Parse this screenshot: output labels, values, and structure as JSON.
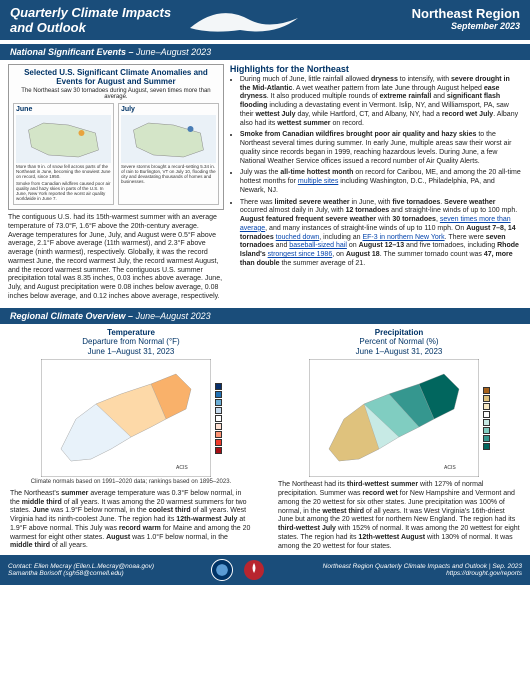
{
  "header": {
    "title_line1": "Quarterly Climate Impacts",
    "title_line2": "and Outlook",
    "region": "Northeast Region",
    "date": "September 2023"
  },
  "section1": {
    "bar_title": "National Significant Events –",
    "bar_sub": "June–August 2023",
    "map_title": "Selected U.S. Significant Climate Anomalies and Events for August and Summer",
    "map_sub": "The Northeast saw 30 tornadoes during August, seven times more than average.",
    "june_label": "June",
    "july_label": "July",
    "june_text": "More than 9 in. of snow fell across parts of the Northeast in June, becoming the snowiest June on record, since 1950.",
    "june_text2": "Smoke from Canadian wildfires caused poor air quality and hazy skies in parts of the U.S. In June, New York reported the worst air quality worldwide in June 7.",
    "july_text": "Severe storms brought a record-setting 5.34 in. of rain to Burlington, VT on July 10, flooding the city and devastating thousands of homes and businesses.",
    "summary": "The contiguous U.S. had its 15th-warmest summer with an average temperature of 73.0°F, 1.6°F above the 20th-century average. Average temperatures for June, July, and August were 0.5°F above average, 2.1°F above average (11th warmest), and 2.3°F above average (ninth warmest), respectively. Globally, it was the record warmest June, the record warmest July, the record warmest August, and the record warmest summer. The contiguous U.S. summer precipitation total was 8.35 inches, 0.03 inches above average. June, July, and August precipitation were 0.08 inches below average, 0.08 inches below average, and 0.12 inches above average, respectively.",
    "highlights_head": "Highlights for the Northeast",
    "bullets": [
      "During much of June, little rainfall allowed <b>dryness</b> to intensify, with <b>severe drought in the Mid-Atlantic</b>. A wet weather pattern from late June through August helped <b>ease dryness</b>. It also produced multiple rounds of <b>extreme rainfall</b> and <b>significant flash flooding</b> including a devastating event in Vermont. Islip, NY, and Williamsport, PA, saw their <b>wettest July</b> day, while Hartford, CT, and Albany, NY, had a <b>record wet July</b>. Albany also had its <b>wettest summer</b> on record.",
      "<b>Smoke from Canadian wildfires brought poor air quality and hazy skies</b> to the Northeast several times during summer. In early June, multiple areas saw their worst air quality since records began in 1999, reaching hazardous levels. During June, a few National Weather Service offices issued a record number of Air Quality Alerts.",
      "July was the <b>all-time hottest month</b> on record for Caribou, ME, and among the 20 all-time hottest months for <span class='link'>multiple sites</span> including Washington, D.C., Philadelphia, PA, and Newark, NJ.",
      "There was <b>limited severe weather</b> in June, with <b>five tornadoes</b>. <b>Severe weather</b> occurred almost daily in July, with <b>12 tornadoes</b> and straight-line winds of up to 100 mph. <b>August featured frequent severe weather</b> with <b>30 tornadoes</b>, <span class='link'>seven times more than average</span>, and many instances of straight-line winds of up to 110 mph. On <b>August 7–8, 14 tornadoes</b> <span class='link'>touched down</span>, including an <span class='link'>EF-3 in northern New York</span>. There were <b>seven tornadoes</b> and <span class='link'>baseball-sized hail</span> on <b>August 12–13</b> and five tornadoes, including <b>Rhode Island's</b> <span class='link'>strongest since 1986</span>, on <b>August 18</b>. The summer tornado count was <b>47, more than double</b> the summer average of 21."
    ]
  },
  "section2": {
    "bar_title": "Regional Climate Overview –",
    "bar_sub": "June–August 2023",
    "temp_head1": "Temperature",
    "temp_head2": "Departure from Normal (°F)",
    "temp_head3": "June 1–August 31, 2023",
    "precip_head1": "Precipitation",
    "precip_head2": "Percent of Normal (%)",
    "precip_head3": "June 1–August 31, 2023",
    "climate_note": "Climate normals based on 1991–2020 data; rankings based on 1895–2023.",
    "temp_para": "The Northeast's <b>summer</b> average temperature was 0.3°F below normal, in the <b>middle third</b> of all years. It was among the 20 warmest summers for two states. <b>June</b> was 1.9°F below normal, in the <b>coolest third</b> of all years. West Virginia had its ninth-coolest June. The region had its <b>12th-warmest July</b> at 1.9°F above normal. This July was <b>record warm</b> for Maine and among the 20 warmest for eight other states. <b>August</b> was 1.0°F below normal, in the <b>middle third</b> of all years.",
    "precip_para": "The Northeast had its <b>third-wettest summer</b> with 127% of normal precipitation. Summer was <b>record wet</b> for New Hampshire and Vermont and among the 20 wettest for six other states. June precipitation was 100% of normal, in the <b>wettest third</b> of all years. It was West Virginia's 16th-driest June but among the 20 wettest for northern New England. The region had its <b>third-wettest July</b> with 152% of normal. It was among the 20 wettest for eight states. The region had its <b>12th-wettest August</b> with 130% of normal. It was among the 20 wettest for four states.",
    "temp_colors": [
      "#08306b",
      "#2171b5",
      "#6baed6",
      "#c6dbef",
      "#ffffff",
      "#fee0d2",
      "#fc9272",
      "#ef3b2c",
      "#a50f15"
    ],
    "precip_colors": [
      "#a6611a",
      "#dfc27d",
      "#f6e8c3",
      "#ffffff",
      "#c7eae5",
      "#80cdc1",
      "#35978f",
      "#01665e"
    ]
  },
  "footer": {
    "contact1": "Contact:  Ellen Mecray (Ellen.L.Mecray@noaa.gov)",
    "contact2": "Samantha Borisoff (sgh58@cornell.edu)",
    "right1": "Northeast Region Quarterly Climate Impacts and Outlook | Sep. 2023",
    "right2": "https://drought.gov/reports"
  }
}
